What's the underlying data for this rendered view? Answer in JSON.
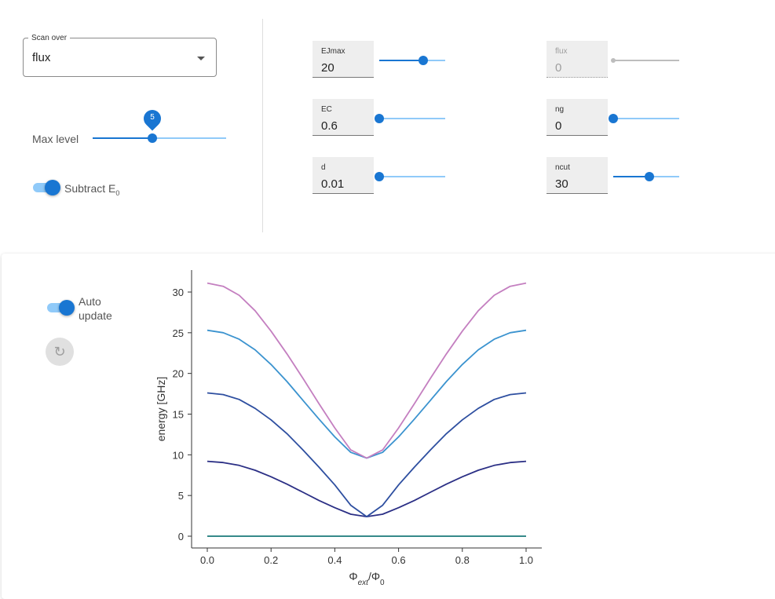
{
  "scan": {
    "legend": "Scan over",
    "value": "flux"
  },
  "max_level": {
    "label": "Max level",
    "value": "5",
    "fraction": 0.45
  },
  "subtract": {
    "label": "Subtract E",
    "subscript": "0",
    "on": true
  },
  "params": [
    {
      "name": "EJmax",
      "value": "20",
      "fraction": 0.67,
      "disabled": false
    },
    {
      "name": "EC",
      "value": "0.6",
      "fraction": 0.0,
      "disabled": false
    },
    {
      "name": "d",
      "value": "0.01",
      "fraction": 0.0,
      "disabled": false
    },
    {
      "name": "flux",
      "value": "0",
      "fraction": 0.0,
      "disabled": true
    },
    {
      "name": "ng",
      "value": "0",
      "fraction": 0.0,
      "disabled": false
    },
    {
      "name": "ncut",
      "value": "30",
      "fraction": 0.55,
      "disabled": false
    }
  ],
  "auto_update": {
    "label_line1": "Auto",
    "label_line2": "update",
    "on": true
  },
  "refresh_icon": "refresh-icon",
  "colors": {
    "accent": "#1976d2",
    "accent_light": "#90caf9"
  },
  "chart_data": {
    "type": "line",
    "xlabel_base": "Φ",
    "xlabel_sub1": "ext",
    "xlabel_mid": "/Φ",
    "xlabel_sub2": "0",
    "ylabel": "energy [GHz]",
    "xlim": [
      0.0,
      1.0
    ],
    "ylim": [
      -1.5,
      32.5
    ],
    "xticks": [
      "0.0",
      "0.2",
      "0.4",
      "0.6",
      "0.8",
      "1.0"
    ],
    "yticks": [
      "0",
      "5",
      "10",
      "15",
      "20",
      "25",
      "30"
    ],
    "x": [
      0,
      0.05,
      0.1,
      0.15,
      0.2,
      0.25,
      0.3,
      0.35,
      0.4,
      0.45,
      0.5,
      0.55,
      0.6,
      0.65,
      0.7,
      0.75,
      0.8,
      0.85,
      0.9,
      0.95,
      1.0
    ],
    "series": [
      {
        "color": "#1a7a7a",
        "values": [
          0,
          0,
          0,
          0,
          0,
          0,
          0,
          0,
          0,
          0,
          0,
          0,
          0,
          0,
          0,
          0,
          0,
          0,
          0,
          0,
          0
        ]
      },
      {
        "color": "#2b2f85",
        "values": [
          9.2,
          9.05,
          8.7,
          8.1,
          7.3,
          6.4,
          5.4,
          4.4,
          3.5,
          2.7,
          2.4,
          2.7,
          3.5,
          4.4,
          5.4,
          6.4,
          7.3,
          8.1,
          8.7,
          9.05,
          9.2
        ]
      },
      {
        "color": "#2e4fa0",
        "values": [
          17.6,
          17.4,
          16.8,
          15.7,
          14.3,
          12.6,
          10.6,
          8.5,
          6.3,
          3.8,
          2.4,
          3.8,
          6.3,
          8.5,
          10.6,
          12.6,
          14.3,
          15.7,
          16.8,
          17.4,
          17.6
        ]
      },
      {
        "color": "#3b93cf",
        "values": [
          25.3,
          25.0,
          24.2,
          22.9,
          21.1,
          19.0,
          16.7,
          14.4,
          12.2,
          10.3,
          9.6,
          10.3,
          12.2,
          14.4,
          16.7,
          19.0,
          21.1,
          22.9,
          24.2,
          25.0,
          25.3
        ]
      },
      {
        "color": "#c47fc0",
        "values": [
          31.1,
          30.7,
          29.6,
          27.7,
          25.2,
          22.4,
          19.4,
          16.3,
          13.3,
          10.6,
          9.6,
          10.6,
          13.3,
          16.3,
          19.4,
          22.4,
          25.2,
          27.7,
          29.6,
          30.7,
          31.1
        ]
      }
    ]
  }
}
